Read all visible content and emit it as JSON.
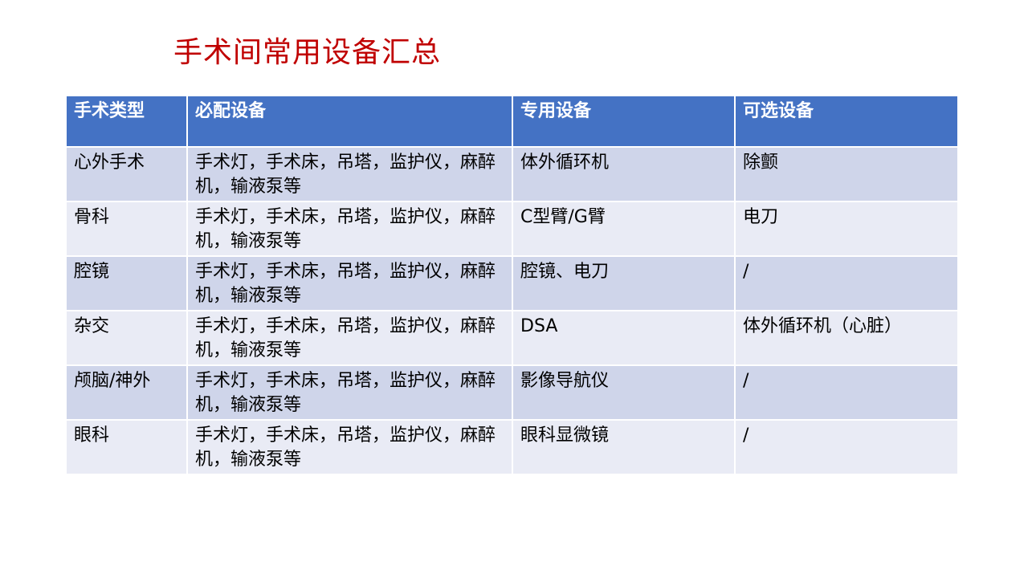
{
  "title": "手术间常用设备汇总",
  "colors": {
    "title": "#C00000",
    "header_bg": "#4472C4",
    "row_odd": "#CFD5EA",
    "row_even": "#E9EBF5"
  },
  "table": {
    "headers": [
      "手术类型",
      "必配设备",
      "专用设备",
      "可选设备"
    ],
    "rows": [
      [
        "心外手术",
        "手术灯，手术床，吊塔，监护仪，麻醉机，输液泵等",
        "体外循环机",
        "除颤"
      ],
      [
        "骨科",
        "手术灯，手术床，吊塔，监护仪，麻醉机，输液泵等",
        "C型臂/G臂",
        "电刀"
      ],
      [
        "腔镜",
        "手术灯，手术床，吊塔，监护仪，麻醉机，输液泵等",
        "腔镜、电刀",
        "/"
      ],
      [
        "杂交",
        "手术灯，手术床，吊塔，监护仪，麻醉机，输液泵等",
        "DSA",
        "体外循环机（心脏）"
      ],
      [
        "颅脑/神外",
        "手术灯，手术床，吊塔，监护仪，麻醉机，输液泵等",
        "影像导航仪",
        "/"
      ],
      [
        "眼科",
        "手术灯，手术床，吊塔，监护仪，麻醉机，输液泵等",
        "眼科显微镜",
        "/"
      ]
    ]
  }
}
